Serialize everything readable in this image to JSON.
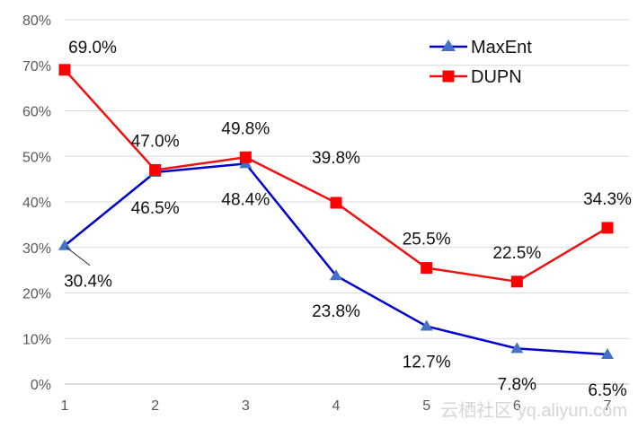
{
  "chart_data": {
    "type": "line",
    "title": "",
    "xlabel": "",
    "ylabel": "",
    "x": [
      1,
      2,
      3,
      4,
      5,
      6,
      7
    ],
    "ylim": [
      0,
      0.8
    ],
    "yticks": [
      "0%",
      "10%",
      "20%",
      "30%",
      "40%",
      "50%",
      "60%",
      "70%",
      "80%"
    ],
    "grid": true,
    "legend_position": "top-right",
    "series": [
      {
        "name": "MaxEnt",
        "color": "#0000cc",
        "marker_color": "#4472c4",
        "marker": "triangle",
        "values": [
          0.304,
          0.465,
          0.484,
          0.238,
          0.127,
          0.078,
          0.065
        ],
        "labels": [
          "30.4%",
          "46.5%",
          "48.4%",
          "23.8%",
          "12.7%",
          "7.8%",
          "6.5%"
        ]
      },
      {
        "name": "DUPN",
        "color": "#ee1111",
        "marker_color": "#ff0000",
        "marker": "square",
        "values": [
          0.69,
          0.47,
          0.498,
          0.398,
          0.255,
          0.225,
          0.343
        ],
        "labels": [
          "69.0%",
          "47.0%",
          "49.8%",
          "39.8%",
          "25.5%",
          "22.5%",
          "34.3%"
        ]
      }
    ]
  },
  "watermark": "云栖社区 yq.aliyun.com"
}
